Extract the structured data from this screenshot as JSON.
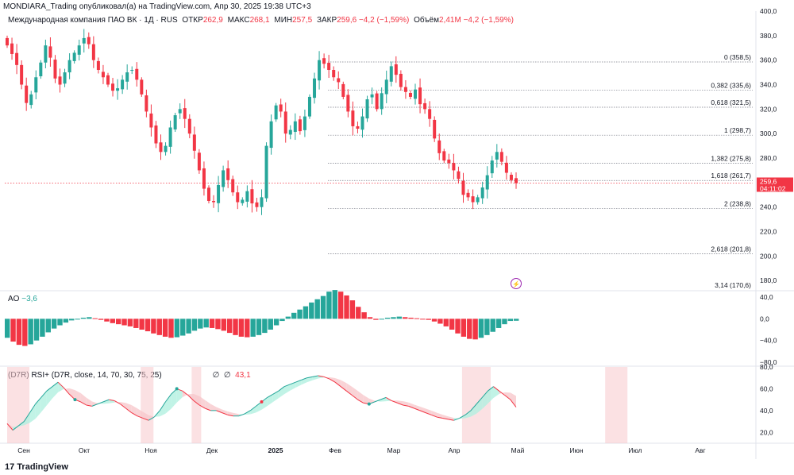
{
  "publisher_line": "MONDIARA_Trading опубликовал(а) на TradingView.com, Апр 30, 2025 19:38 UTC+3",
  "legend": {
    "symbol": "Международная компания ПАО ВК · 1Д · RUS",
    "open_label": "ОТКР",
    "open_value": "262,9",
    "high_label": "МАКС",
    "high_value": "268,1",
    "low_label": "МИН",
    "low_value": "257,5",
    "close_label": "ЗАКР",
    "close_value": "259,6",
    "change": "−4,2 (−1,59%)",
    "volume_label": "Объём",
    "volume_value": "2,41M",
    "volume_change": "−4,2 (−1,59%)"
  },
  "price_badge": {
    "price": "259,6",
    "timer": "04:11:02"
  },
  "ao_legend": {
    "name": "AO",
    "value": "−3,6"
  },
  "rsi_legend": {
    "name": "(D7R) RSI+ (D7R, close, 14, 70, 30, 75, 25)",
    "extra1": "∅",
    "extra2": "∅",
    "value": "43,1"
  },
  "footer": {
    "brand": "TradingView"
  },
  "colors": {
    "up": "#26a69a",
    "down": "#f23645",
    "rsi_up_fill": "#b2f0e0",
    "rsi_down_fill": "#f8c8cc",
    "badge": "#f23645"
  },
  "chart_data": [
    {
      "type": "candlestick",
      "title": "",
      "y_axis_ticks": [
        "400,0",
        "380,0",
        "360,0",
        "340,0",
        "320,0",
        "300,0",
        "280,0",
        "260,0",
        "240,0",
        "220,0",
        "200,0",
        "180,0"
      ],
      "ylim": [
        173,
        400
      ],
      "x_axis_months": [
        "Сен",
        "Окт",
        "Ноя",
        "Дек",
        "2025",
        "Фев",
        "Мар",
        "Апр",
        "Май",
        "Июн",
        "Июл",
        "Авг"
      ],
      "fib_levels": [
        {
          "label": "0 (358,5)",
          "value": 358.5
        },
        {
          "label": "0,382 (335,6)",
          "value": 335.6
        },
        {
          "label": "0,618 (321,5)",
          "value": 321.5
        },
        {
          "label": "1 (298,7)",
          "value": 298.7
        },
        {
          "label": "1,382 (275,8)",
          "value": 275.8
        },
        {
          "label": "1,618 (261,7)",
          "value": 261.7
        },
        {
          "label": "2 (238,8)",
          "value": 238.8
        },
        {
          "label": "2,618 (201,8)",
          "value": 201.8
        },
        {
          "label": "3,14 (170,6)",
          "value": 170.6
        }
      ],
      "last_close": 259.6,
      "close_path": [
        372,
        365,
        356,
        340,
        325,
        332,
        346,
        358,
        372,
        362,
        345,
        340,
        350,
        360,
        366,
        372,
        378,
        373,
        360,
        352,
        346,
        340,
        335,
        337,
        344,
        350,
        352,
        344,
        332,
        318,
        305,
        292,
        285,
        290,
        305,
        315,
        320,
        312,
        300,
        286,
        270,
        255,
        245,
        244,
        258,
        270,
        262,
        252,
        244,
        246,
        253,
        243,
        240,
        248,
        290,
        310,
        323,
        318,
        300,
        303,
        310,
        302,
        314,
        330,
        345,
        360,
        357,
        352,
        346,
        342,
        330,
        318,
        306,
        304,
        314,
        328,
        332,
        320,
        333,
        344,
        355,
        348,
        338,
        334,
        330,
        336,
        324,
        320,
        312,
        296,
        284,
        278,
        276,
        270,
        263,
        250,
        248,
        244,
        248,
        256,
        266,
        278,
        285,
        277,
        268,
        262,
        259.6
      ],
      "ao_ylim": [
        -80,
        40
      ],
      "ao_ticks": [
        "40,0",
        "0,0",
        "−40,0",
        "−80,0"
      ],
      "ao_values": [
        -35,
        -42,
        -48,
        -50,
        -47,
        -40,
        -33,
        -25,
        -18,
        -12,
        -7,
        -3,
        0,
        2,
        3,
        1,
        -2,
        -5,
        -8,
        -10,
        -12,
        -14,
        -17,
        -20,
        -23,
        -27,
        -30,
        -33,
        -35,
        -34,
        -31,
        -27,
        -22,
        -18,
        -16,
        -17,
        -19,
        -22,
        -26,
        -30,
        -33,
        -34,
        -33,
        -30,
        -26,
        -20,
        -12,
        -4,
        4,
        11,
        17,
        23,
        30,
        36,
        42,
        50,
        53,
        50,
        43,
        34,
        22,
        12,
        3,
        -2,
        0,
        2,
        3,
        4,
        3,
        2,
        1,
        0,
        -2,
        -5,
        -9,
        -14,
        -20,
        -27,
        -33,
        -37,
        -38,
        -35,
        -30,
        -24,
        -17,
        -10,
        -4,
        -3.6
      ],
      "rsi_ylim": [
        10,
        80
      ],
      "rsi_ticks": [
        "80,0",
        "60,0",
        "40,0",
        "20,0"
      ],
      "rsi_values": [
        28,
        22,
        26,
        30,
        38,
        46,
        52,
        58,
        62,
        66,
        61,
        55,
        50,
        48,
        45,
        44,
        46,
        48,
        50,
        49,
        46,
        42,
        38,
        35,
        33,
        31,
        34,
        40,
        48,
        55,
        60,
        58,
        54,
        49,
        45,
        42,
        40,
        40,
        38,
        36,
        35,
        35,
        37,
        40,
        44,
        48,
        52,
        55,
        58,
        62,
        64,
        66,
        68,
        70,
        71,
        72,
        71,
        69,
        66,
        62,
        58,
        54,
        50,
        47,
        46,
        48,
        50,
        52,
        49,
        47,
        45,
        44,
        42,
        40,
        38,
        36,
        34,
        33,
        32,
        31,
        33,
        36,
        40,
        46,
        52,
        58,
        62,
        58,
        54,
        50,
        43.1
      ]
    }
  ]
}
